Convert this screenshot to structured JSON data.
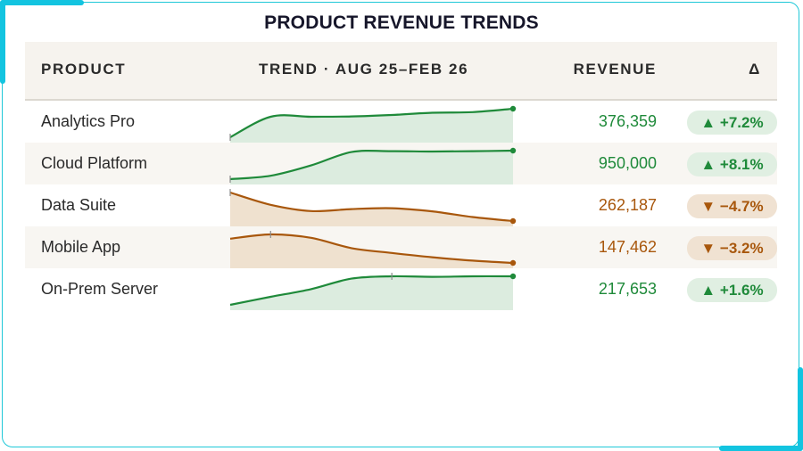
{
  "title": "PRODUCT REVENUE TRENDS",
  "columns": {
    "product": "PRODUCT",
    "trend": "TREND · AUG 25–FEB 26",
    "revenue": "REVENUE",
    "delta": "Δ"
  },
  "colors": {
    "up": "#1f8a3a",
    "up_fill": "#dcecdf",
    "down": "#a8570c",
    "down_fill": "#efe1cf",
    "accent": "#13c4e0"
  },
  "chart_data": {
    "type": "table",
    "title": "PRODUCT REVENUE TRENDS",
    "rows": [
      {
        "product": "Analytics Pro",
        "revenue": "376,359",
        "delta": "▲ +7.2%",
        "direction": "up",
        "trend": [
          0.0,
          0.72,
          0.72,
          0.73,
          0.78,
          0.86,
          0.88,
          1.0
        ],
        "marked_index": 0
      },
      {
        "product": "Cloud Platform",
        "revenue": "950,000",
        "delta": "▲ +8.1%",
        "direction": "up",
        "trend": [
          0.0,
          0.12,
          0.48,
          0.95,
          0.98,
          0.97,
          0.98,
          1.0
        ],
        "marked_index": 0
      },
      {
        "product": "Data Suite",
        "revenue": "262,187",
        "delta": "▼ −4.7%",
        "direction": "down",
        "trend": [
          1.0,
          0.57,
          0.35,
          0.42,
          0.45,
          0.34,
          0.14,
          0.0
        ],
        "marked_index": 0
      },
      {
        "product": "Mobile App",
        "revenue": "147,462",
        "delta": "▼ −3.2%",
        "direction": "down",
        "trend": [
          0.85,
          1.0,
          0.88,
          0.52,
          0.35,
          0.2,
          0.08,
          0.0
        ],
        "marked_index": 1
      },
      {
        "product": "On-Prem Server",
        "revenue": "217,653",
        "delta": "▲ +1.6%",
        "direction": "up",
        "trend": [
          0.0,
          0.28,
          0.55,
          0.92,
          1.0,
          0.98,
          1.0,
          1.0
        ],
        "marked_index": 4
      }
    ]
  }
}
